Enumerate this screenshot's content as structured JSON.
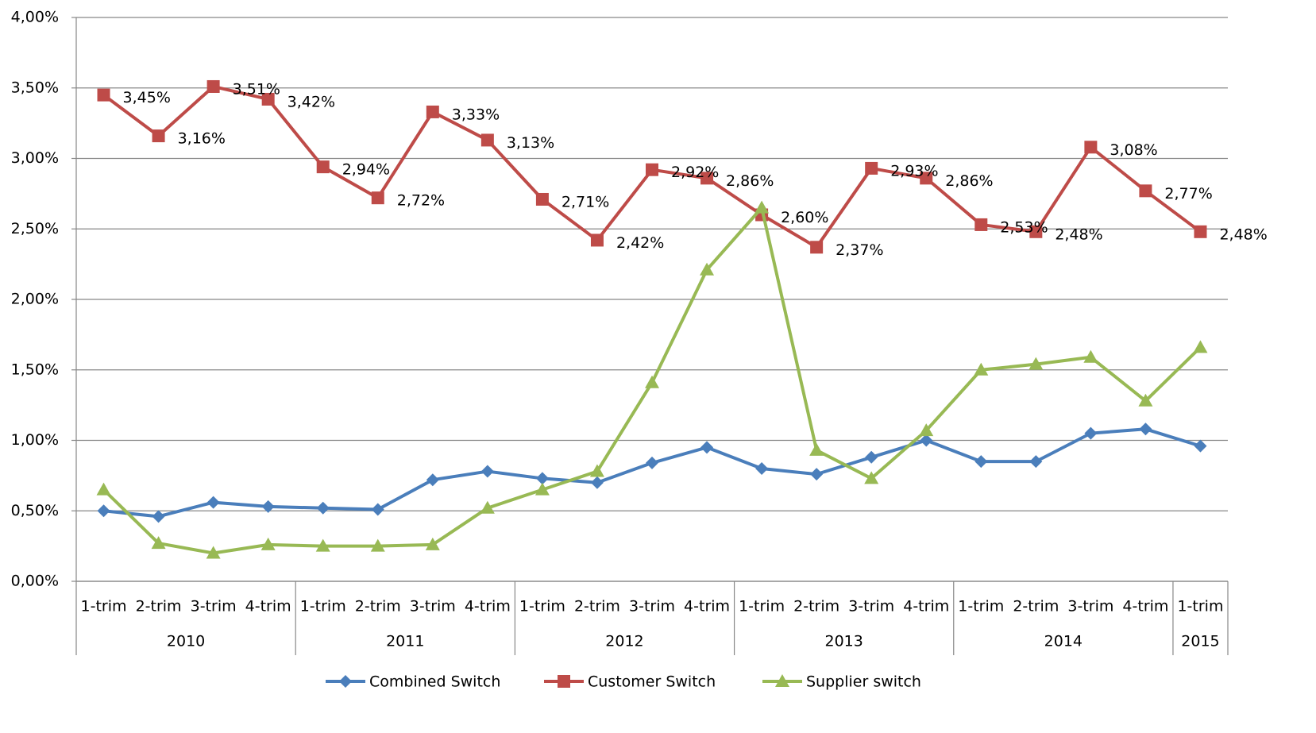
{
  "chart_data": {
    "type": "line",
    "groups": [
      {
        "label": "2010",
        "categories": [
          "1-trim",
          "2-trim",
          "3-trim",
          "4-trim"
        ]
      },
      {
        "label": "2011",
        "categories": [
          "1-trim",
          "2-trim",
          "3-trim",
          "4-trim"
        ]
      },
      {
        "label": "2012",
        "categories": [
          "1-trim",
          "2-trim",
          "3-trim",
          "4-trim"
        ]
      },
      {
        "label": "2013",
        "categories": [
          "1-trim",
          "2-trim",
          "3-trim",
          "4-trim"
        ]
      },
      {
        "label": "2014",
        "categories": [
          "1-trim",
          "2-trim",
          "3-trim",
          "4-trim"
        ]
      },
      {
        "label": "2015",
        "categories": [
          "1-trim"
        ]
      }
    ],
    "ylim": [
      0,
      4
    ],
    "yticks": [
      {
        "value": 0,
        "label": "0,00%"
      },
      {
        "value": 0.5,
        "label": "0,50%"
      },
      {
        "value": 1,
        "label": "1,00%"
      },
      {
        "value": 1.5,
        "label": "1,50%"
      },
      {
        "value": 2,
        "label": "2,00%"
      },
      {
        "value": 2.5,
        "label": "2,50%"
      },
      {
        "value": 3,
        "label": "3,00%"
      },
      {
        "value": 3.5,
        "label": "3,50%"
      },
      {
        "value": 4,
        "label": "4,00%"
      }
    ],
    "grid": true,
    "legend": "bottom",
    "series": [
      {
        "name": "Combined Switch",
        "color": "#4a7ebb",
        "marker": "diamond",
        "values": [
          0.5,
          0.46,
          0.56,
          0.53,
          0.52,
          0.51,
          0.72,
          0.78,
          0.73,
          0.7,
          0.84,
          0.95,
          0.8,
          0.76,
          0.88,
          1.0,
          0.85,
          0.85,
          1.05,
          1.08,
          0.96
        ]
      },
      {
        "name": "Customer Switch",
        "color": "#be4b48",
        "marker": "square",
        "values": [
          3.45,
          3.16,
          3.51,
          3.42,
          2.94,
          2.72,
          3.33,
          3.13,
          2.71,
          2.42,
          2.92,
          2.86,
          2.6,
          2.37,
          2.93,
          2.86,
          2.53,
          2.48,
          3.08,
          2.77,
          2.48
        ],
        "value_labels": [
          "3,45%",
          "3,16%",
          "3,51%",
          "3,42%",
          "2,94%",
          "2,72%",
          "3,33%",
          "3,13%",
          "2,71%",
          "2,42%",
          "2,92%",
          "2,86%",
          "2,60%",
          "2,37%",
          "2,93%",
          "2,86%",
          "2,53%",
          "2,48%",
          "3,08%",
          "2,77%",
          "2,48%"
        ]
      },
      {
        "name": "Supplier switch",
        "color": "#98b954",
        "marker": "triangle",
        "values": [
          0.65,
          0.27,
          0.2,
          0.26,
          0.25,
          0.25,
          0.26,
          0.52,
          0.65,
          0.78,
          1.41,
          2.21,
          2.65,
          0.93,
          0.73,
          1.07,
          1.5,
          1.54,
          1.59,
          1.28,
          1.66
        ]
      }
    ]
  }
}
